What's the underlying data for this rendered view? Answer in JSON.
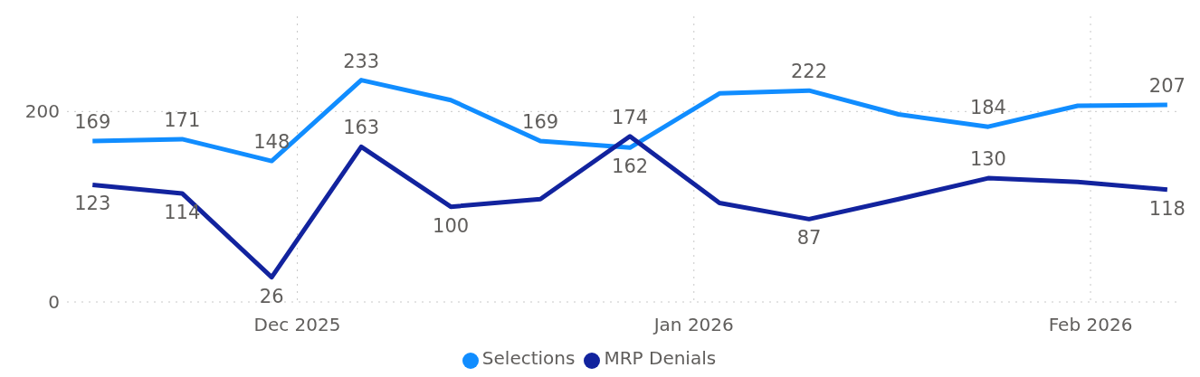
{
  "chart_data": {
    "type": "line",
    "x": [
      "2025-11-15",
      "2025-11-22",
      "2025-11-29",
      "2025-12-06",
      "2025-12-13",
      "2025-12-20",
      "2025-12-27",
      "2026-01-03",
      "2026-01-10",
      "2026-01-17",
      "2026-01-24",
      "2026-01-31",
      "2026-02-07"
    ],
    "series": [
      {
        "name": "Selections",
        "color": "#118dff",
        "values": [
          169,
          171,
          148,
          233,
          212,
          169,
          162,
          219,
          222,
          197,
          184,
          206,
          207
        ],
        "value_labels": [
          "169",
          "171",
          "148",
          "233",
          null,
          "169",
          "162",
          null,
          "222",
          null,
          "184",
          null,
          "207"
        ]
      },
      {
        "name": "MRP Denials",
        "color": "#12239e",
        "values": [
          123,
          114,
          26,
          163,
          100,
          108,
          174,
          104,
          87,
          108,
          130,
          126,
          118
        ],
        "value_labels": [
          "123",
          "114",
          "26",
          "163",
          "100",
          null,
          "174",
          null,
          "87",
          null,
          "130",
          null,
          "118"
        ]
      }
    ],
    "xlim": [
      "2025-11-13",
      "2026-02-08"
    ],
    "xticks": [
      {
        "value": "2025-12-01",
        "label": "Dec 2025"
      },
      {
        "value": "2026-01-01",
        "label": "Jan 2026"
      },
      {
        "value": "2026-02-01",
        "label": "Feb 2026"
      }
    ],
    "ylim": [
      0,
      300
    ],
    "yticks": [
      0,
      200
    ],
    "grid": true,
    "legend": "bottom",
    "marker": "none",
    "line_style": "solid"
  }
}
